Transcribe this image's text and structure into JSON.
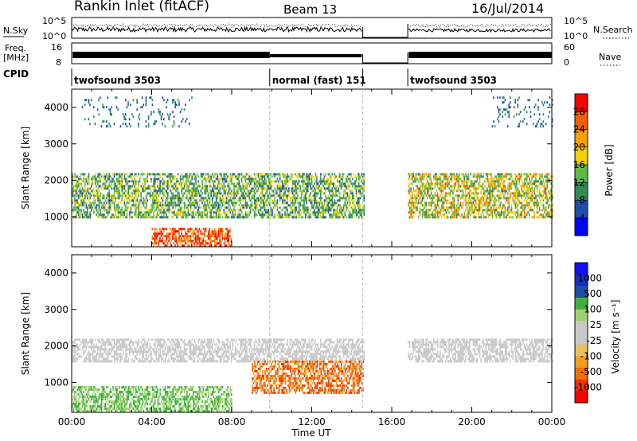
{
  "header": {
    "station_title": "Rankin Inlet (fitACF)",
    "beam": "Beam 13",
    "date": "16/Jul/2014"
  },
  "noise_panel": {
    "left_label": "N.Sky",
    "right_label": "N.Search",
    "ticks": [
      "10^5",
      "10^0"
    ]
  },
  "freq_panel": {
    "left_label_1": "Freq.",
    "left_label_2": "[MHz]",
    "right_label": "Nave",
    "left_ticks": [
      "16",
      "8"
    ],
    "right_ticks": [
      "60",
      "0"
    ]
  },
  "cpid_panel": {
    "label": "CPID",
    "segments": [
      {
        "name": "twofsound 3503",
        "start_hour": 0,
        "end_hour": 9.9
      },
      {
        "name": "normal (fast) 151",
        "start_hour": 9.9,
        "end_hour": 14.55
      },
      {
        "name": "twofsound 3503",
        "start_hour": 16.8,
        "end_hour": 24
      }
    ]
  },
  "colors": {
    "power_scale": [
      "#0000ff",
      "#1f4ea8",
      "#2f8b57",
      "#5fb84a",
      "#f0d000",
      "#f7a000",
      "#f06000",
      "#ff0000"
    ],
    "velocity_scale": [
      "#ff0000",
      "#ee3300",
      "#f07000",
      "#f0a020",
      "#e8c060",
      "#c8c8c8",
      "#c8c8c8",
      "#a0d070",
      "#40b040",
      "#1f4ea8",
      "#1030c0",
      "#1010ff"
    ],
    "ground_scatter": "#c8c8c8"
  },
  "chart_data": [
    {
      "type": "heatmap",
      "title": "",
      "xlabel": "Time UT",
      "ylabel": "Slant Range [km]",
      "xlim": [
        0,
        24
      ],
      "ylim": [
        180,
        4500
      ],
      "x_ticks": [
        "00:00",
        "04:00",
        "08:00",
        "12:00",
        "16:00",
        "20:00",
        "00:00"
      ],
      "y_ticks": [
        "1000",
        "2000",
        "3000",
        "4000"
      ],
      "colorbar": {
        "label": "Power [dB]",
        "ticks": [
          "4",
          "8",
          "12",
          "16",
          "20",
          "24",
          "28"
        ],
        "range": [
          0,
          30
        ]
      },
      "data_gaps_hours": [
        [
          14.6,
          16.8
        ]
      ],
      "features": [
        {
          "range_km": [
            1000,
            2200
          ],
          "hours": [
            0,
            14.6
          ],
          "level_db": [
            6,
            18
          ]
        },
        {
          "range_km": [
            1000,
            2200
          ],
          "hours": [
            16.8,
            24
          ],
          "level_db": [
            8,
            24
          ]
        },
        {
          "range_km": [
            180,
            700
          ],
          "hours": [
            4,
            8
          ],
          "level_db": [
            20,
            30
          ]
        },
        {
          "range_km": [
            3500,
            4300
          ],
          "hours": [
            0.5,
            6
          ],
          "level_db": [
            4,
            10
          ]
        },
        {
          "range_km": [
            3500,
            4300
          ],
          "hours": [
            21,
            24
          ],
          "level_db": [
            4,
            10
          ]
        }
      ]
    },
    {
      "type": "heatmap",
      "title": "",
      "xlabel": "Time UT",
      "ylabel": "Slant Range [km]",
      "xlim": [
        0,
        24
      ],
      "ylim": [
        180,
        4500
      ],
      "x_ticks": [
        "00:00",
        "04:00",
        "08:00",
        "12:00",
        "16:00",
        "20:00",
        "00:00"
      ],
      "y_ticks": [
        "1000",
        "2000",
        "3000",
        "4000"
      ],
      "colorbar": {
        "label": "Velocity [m s⁻¹]",
        "ticks": [
          "1000",
          "500",
          "100",
          "25",
          "-25",
          "-100",
          "-500",
          "-1000"
        ]
      },
      "data_gaps_hours": [
        [
          14.6,
          16.8
        ]
      ],
      "features": [
        {
          "range_km": [
            1600,
            2200
          ],
          "hours": [
            0,
            14.6
          ],
          "velocity": "ground scatter"
        },
        {
          "range_km": [
            1600,
            2200
          ],
          "hours": [
            16.8,
            24
          ],
          "velocity": "ground scatter"
        },
        {
          "range_km": [
            700,
            1600
          ],
          "hours": [
            9,
            14.6
          ],
          "velocity": "-100 to -500"
        },
        {
          "range_km": [
            180,
            900
          ],
          "hours": [
            0,
            8
          ],
          "velocity": "25 to 100"
        }
      ]
    }
  ]
}
